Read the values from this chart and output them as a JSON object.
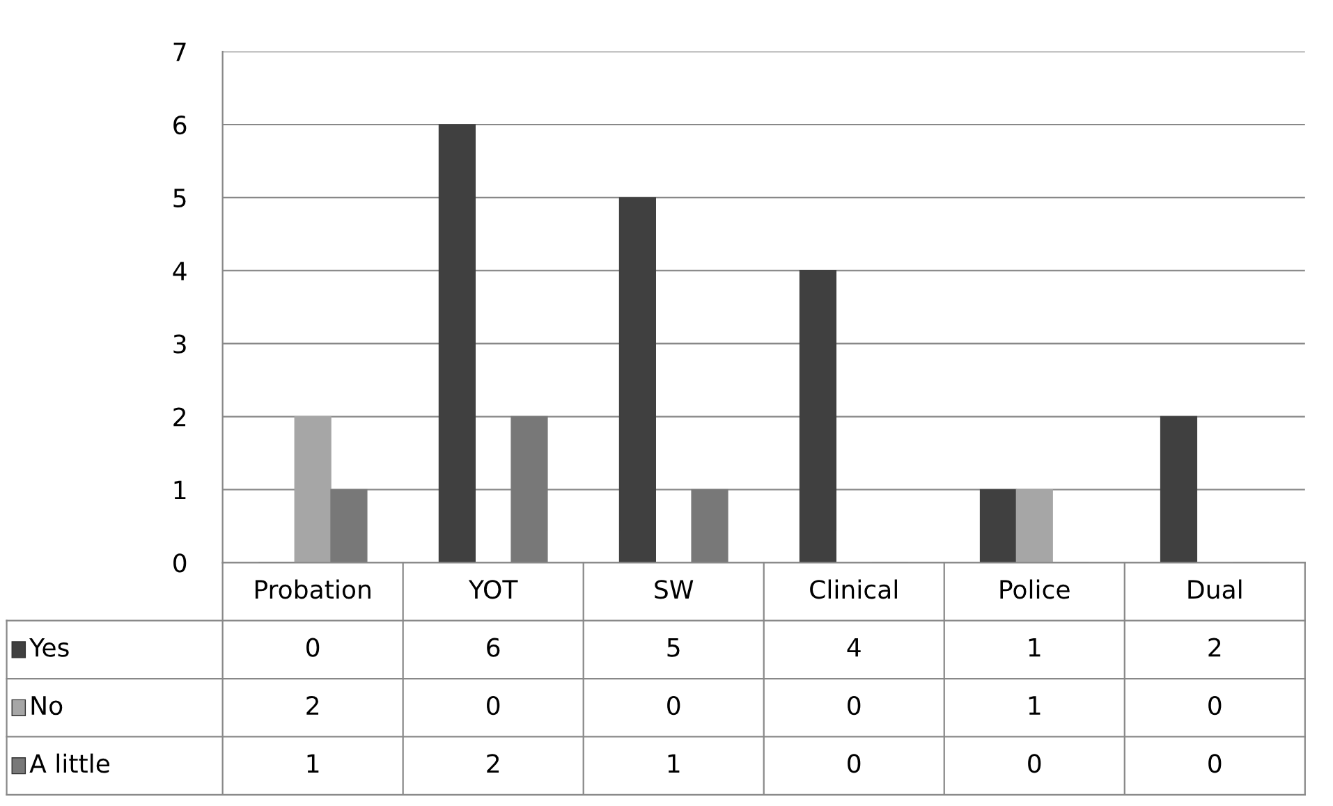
{
  "chart_data": {
    "type": "bar",
    "categories": [
      "Probation",
      "YOT",
      "SW",
      "Clinical",
      "Police",
      "Dual"
    ],
    "series": [
      {
        "name": "Yes",
        "color": "#404040",
        "values": [
          0,
          6,
          5,
          4,
          1,
          2
        ]
      },
      {
        "name": "No",
        "color": "#a6a6a6",
        "values": [
          2,
          0,
          0,
          0,
          1,
          0
        ]
      },
      {
        "name": "A little",
        "color": "#787878",
        "values": [
          1,
          2,
          1,
          0,
          0,
          0
        ]
      }
    ],
    "ylim": [
      0,
      7
    ],
    "yticks": [
      0,
      1,
      2,
      3,
      4,
      5,
      6,
      7
    ],
    "grid": "y",
    "legend": "bottom",
    "data_labels": true
  }
}
